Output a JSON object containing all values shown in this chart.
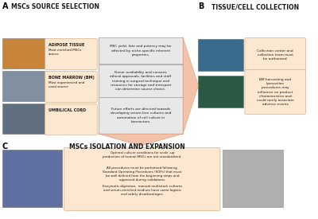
{
  "panel_A_label": "A",
  "panel_B_label": "B",
  "panel_C_label": "C",
  "section_A_title": "MSCs SOURCE SELECTION",
  "section_B_title": "TISSUE/CELL COLLECTION",
  "section_C_title": "MSCs ISOLATION AND EXPANSION",
  "sources": [
    {
      "bold": "ADIPOSE TISSUE",
      "normal": "Most enriched MSCs\nsource"
    },
    {
      "bold": "BONE MARROW (BM)",
      "normal": "Most experienced and\nused source"
    },
    {
      "bold": "UMBILICAL CORD",
      "normal": ""
    }
  ],
  "center_boxes": [
    "MSC yield, fate and potency may be\naffected by niche-specific inherent\nproperties.",
    "Donor availability and consent,\nethical approvals, facilities and staff\ntraining in surgical technique and\nresources for storage and transport\ncan determine source choice.",
    "Future efforts are directed towards\ndeveloping serum-free cultures and\nautomation of cell culture in\nbioreactors."
  ],
  "right_texts": [
    "Collection center and\ncollection team must\nbe authorized",
    "BM harvesting and\nliposuction\nprocedures may\ninfluence on product\ncharacteristics and\ncould rarely associate\nadverse events"
  ],
  "bottom_texts": [
    "Optimal culture conditions for scale -up\nproduction of human MSCs are not standardized.",
    "All procedures must be performed following\nStandard Operating Procedures (SOPs) that must\nbe well defined from the beginning steps and\napproved during validations.",
    "Enzymatic digestion,  manual multistack cultures\nand serum-enriched medium have some logistic\nand safety disadvantages."
  ],
  "box_color_center": "#e8e8e8",
  "box_color_source": "#fce8d0",
  "box_color_right": "#fce8d0",
  "box_color_bottom": "#fce8d0",
  "arrow_color": "#f0b89a",
  "text_color": "#1a1a1a",
  "section_title_color": "#1a1a1a",
  "img_A1_color": "#c8853a",
  "img_A2_color": "#8090a0",
  "img_A3_color": "#607080",
  "img_B1_color": "#3a6a8c",
  "img_B2_color": "#2a5a44",
  "img_C1_color": "#6070a0",
  "img_C2_color": "#b0b0b0"
}
